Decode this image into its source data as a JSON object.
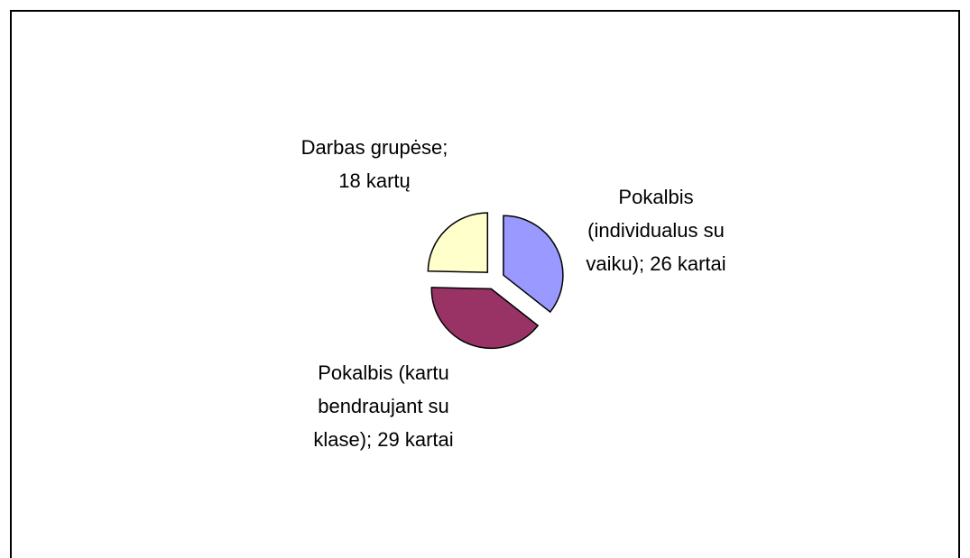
{
  "chart_data": {
    "type": "pie",
    "values": [
      26,
      29,
      18
    ],
    "value_labels": [
      "Pokalbis (individualus su vaiku); 26 kartai",
      "Pokalbis (kartu bendraujant su klase); 29 kartai",
      "Darbas grupėse; 18 kartų"
    ],
    "colors": [
      "#9999ff",
      "#993366",
      "#ffffcc"
    ]
  }
}
